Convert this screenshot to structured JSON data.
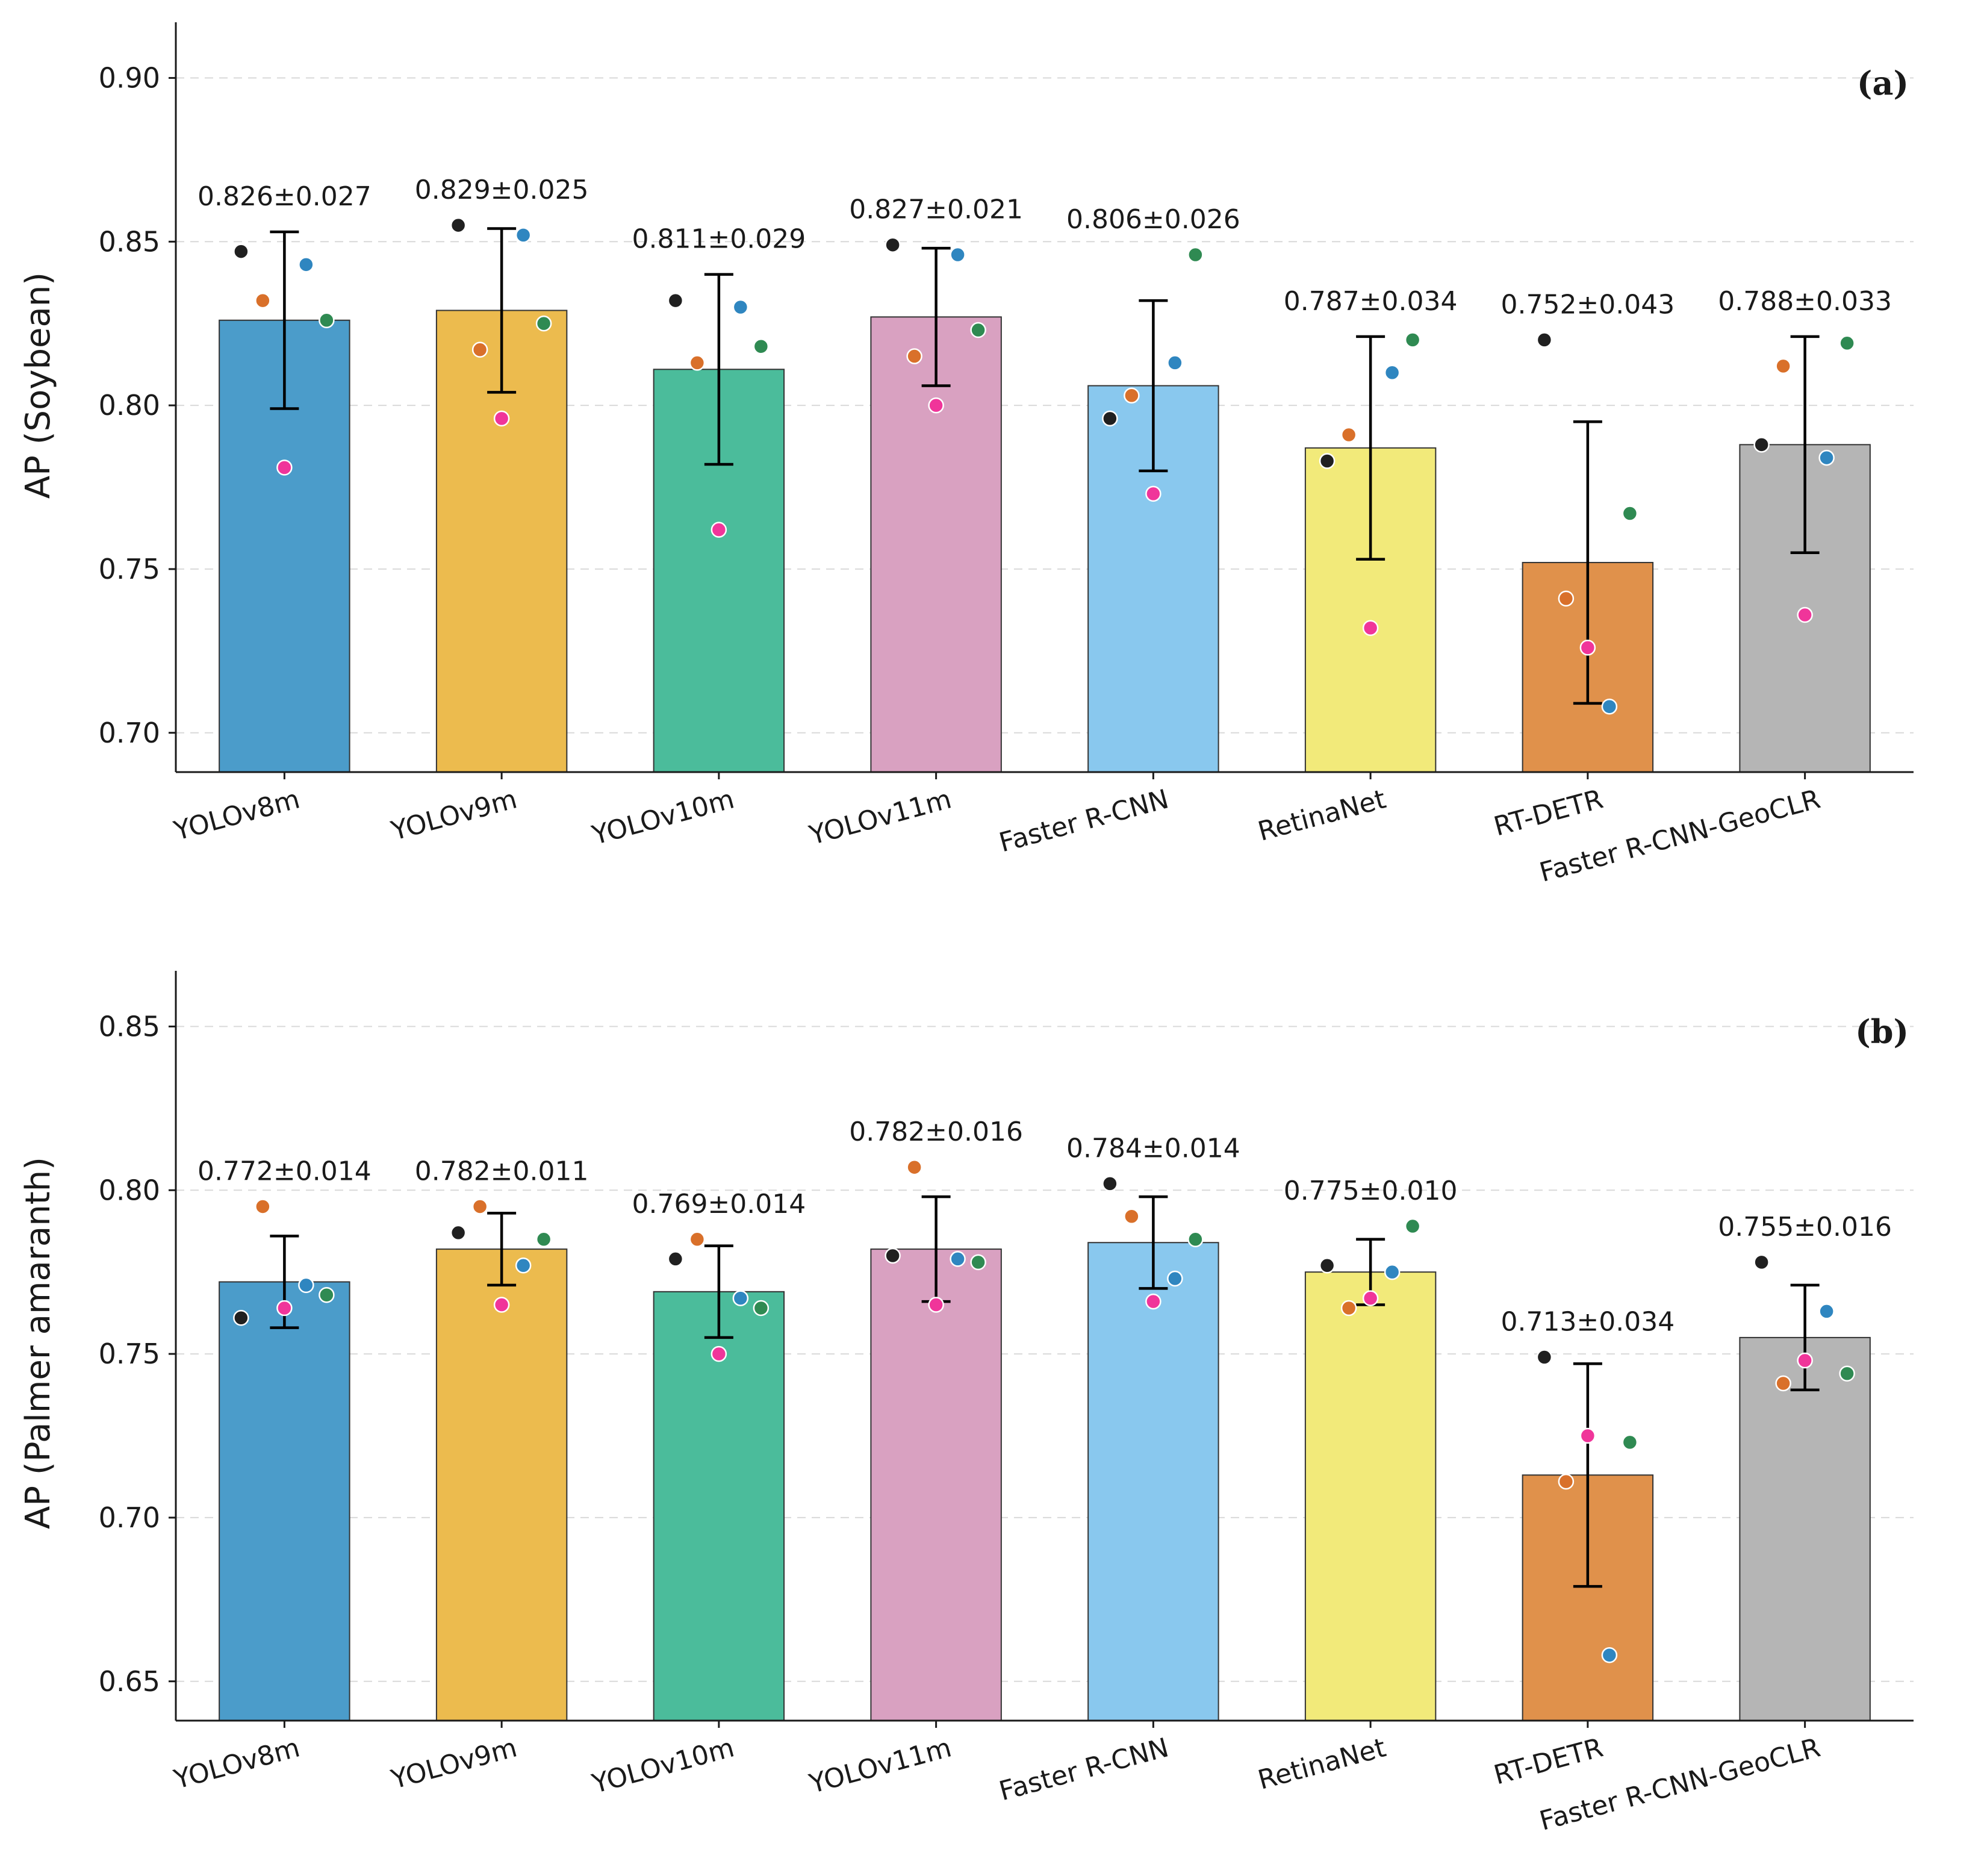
{
  "chart_data": [
    {
      "type": "bar",
      "panel_label": "(a)",
      "ylabel": "AP (Soybean)",
      "ylim": [
        0.688,
        0.917
      ],
      "yticks": [
        "0.70",
        "0.75",
        "0.80",
        "0.85",
        "0.90"
      ],
      "grid": "horizontal dashed",
      "categories": [
        "YOLOv8m",
        "YOLOv9m",
        "YOLOv10m",
        "YOLOv11m",
        "Faster R-CNN",
        "RetinaNet",
        "RT-DETR",
        "Faster R-CNN-GeoCLR"
      ],
      "values": [
        0.826,
        0.829,
        0.811,
        0.827,
        0.806,
        0.787,
        0.752,
        0.788
      ],
      "errors": [
        0.027,
        0.025,
        0.029,
        0.021,
        0.026,
        0.034,
        0.043,
        0.033
      ],
      "value_labels": [
        "0.826±0.027",
        "0.829±0.025",
        "0.811±0.029",
        "0.827±0.021",
        "0.806±0.026",
        "0.787±0.034",
        "0.752±0.043",
        "0.788±0.033"
      ],
      "points": [
        {
          "black": 0.847,
          "orange": 0.832,
          "pink": 0.781,
          "blue": 0.843,
          "green": 0.826
        },
        {
          "black": 0.855,
          "orange": 0.817,
          "pink": 0.796,
          "blue": 0.852,
          "green": 0.825
        },
        {
          "black": 0.832,
          "orange": 0.813,
          "pink": 0.762,
          "blue": 0.83,
          "green": 0.818
        },
        {
          "black": 0.849,
          "orange": 0.815,
          "pink": 0.8,
          "blue": 0.846,
          "green": 0.823
        },
        {
          "black": 0.796,
          "orange": 0.803,
          "pink": 0.773,
          "blue": 0.813,
          "green": 0.846
        },
        {
          "black": 0.783,
          "orange": 0.791,
          "pink": 0.732,
          "blue": 0.81,
          "green": 0.82
        },
        {
          "black": 0.82,
          "orange": 0.741,
          "pink": 0.726,
          "blue": 0.708,
          "green": 0.767
        },
        {
          "black": 0.788,
          "orange": 0.812,
          "pink": 0.736,
          "blue": 0.784,
          "green": 0.819
        }
      ]
    },
    {
      "type": "bar",
      "panel_label": "(b)",
      "ylabel": "AP (Palmer amaranth)",
      "ylim": [
        0.638,
        0.867
      ],
      "yticks": [
        "0.65",
        "0.70",
        "0.75",
        "0.80",
        "0.85"
      ],
      "grid": "horizontal dashed",
      "categories": [
        "YOLOv8m",
        "YOLOv9m",
        "YOLOv10m",
        "YOLOv11m",
        "Faster R-CNN",
        "RetinaNet",
        "RT-DETR",
        "Faster R-CNN-GeoCLR"
      ],
      "values": [
        0.772,
        0.782,
        0.769,
        0.782,
        0.784,
        0.775,
        0.713,
        0.755
      ],
      "errors": [
        0.014,
        0.011,
        0.014,
        0.016,
        0.014,
        0.01,
        0.034,
        0.016
      ],
      "value_labels": [
        "0.772±0.014",
        "0.782±0.011",
        "0.769±0.014",
        "0.782±0.016",
        "0.784±0.014",
        "0.775±0.010",
        "0.713±0.034",
        "0.755±0.016"
      ],
      "points": [
        {
          "black": 0.761,
          "orange": 0.795,
          "pink": 0.764,
          "blue": 0.771,
          "green": 0.768
        },
        {
          "black": 0.787,
          "orange": 0.795,
          "pink": 0.765,
          "blue": 0.777,
          "green": 0.785
        },
        {
          "black": 0.779,
          "orange": 0.785,
          "pink": 0.75,
          "blue": 0.767,
          "green": 0.764
        },
        {
          "black": 0.78,
          "orange": 0.807,
          "pink": 0.765,
          "blue": 0.779,
          "green": 0.778
        },
        {
          "black": 0.802,
          "orange": 0.792,
          "pink": 0.766,
          "blue": 0.773,
          "green": 0.785
        },
        {
          "black": 0.777,
          "orange": 0.764,
          "pink": 0.767,
          "blue": 0.775,
          "green": 0.789
        },
        {
          "black": 0.749,
          "orange": 0.711,
          "pink": 0.725,
          "blue": 0.658,
          "green": 0.723
        },
        {
          "black": 0.778,
          "orange": 0.741,
          "pink": 0.748,
          "blue": 0.763,
          "green": 0.744
        }
      ]
    }
  ],
  "colors": {
    "bars": [
      "#4b9cca",
      "#ecbb4e",
      "#4bbc9b",
      "#d9a1c1",
      "#89c8ee",
      "#f2ea7a",
      "#e0914b",
      "#b5b5b5"
    ],
    "points": {
      "black": "#202020",
      "orange": "#d9702a",
      "pink": "#f0359a",
      "blue": "#2f86c0",
      "green": "#2f8a52"
    }
  }
}
